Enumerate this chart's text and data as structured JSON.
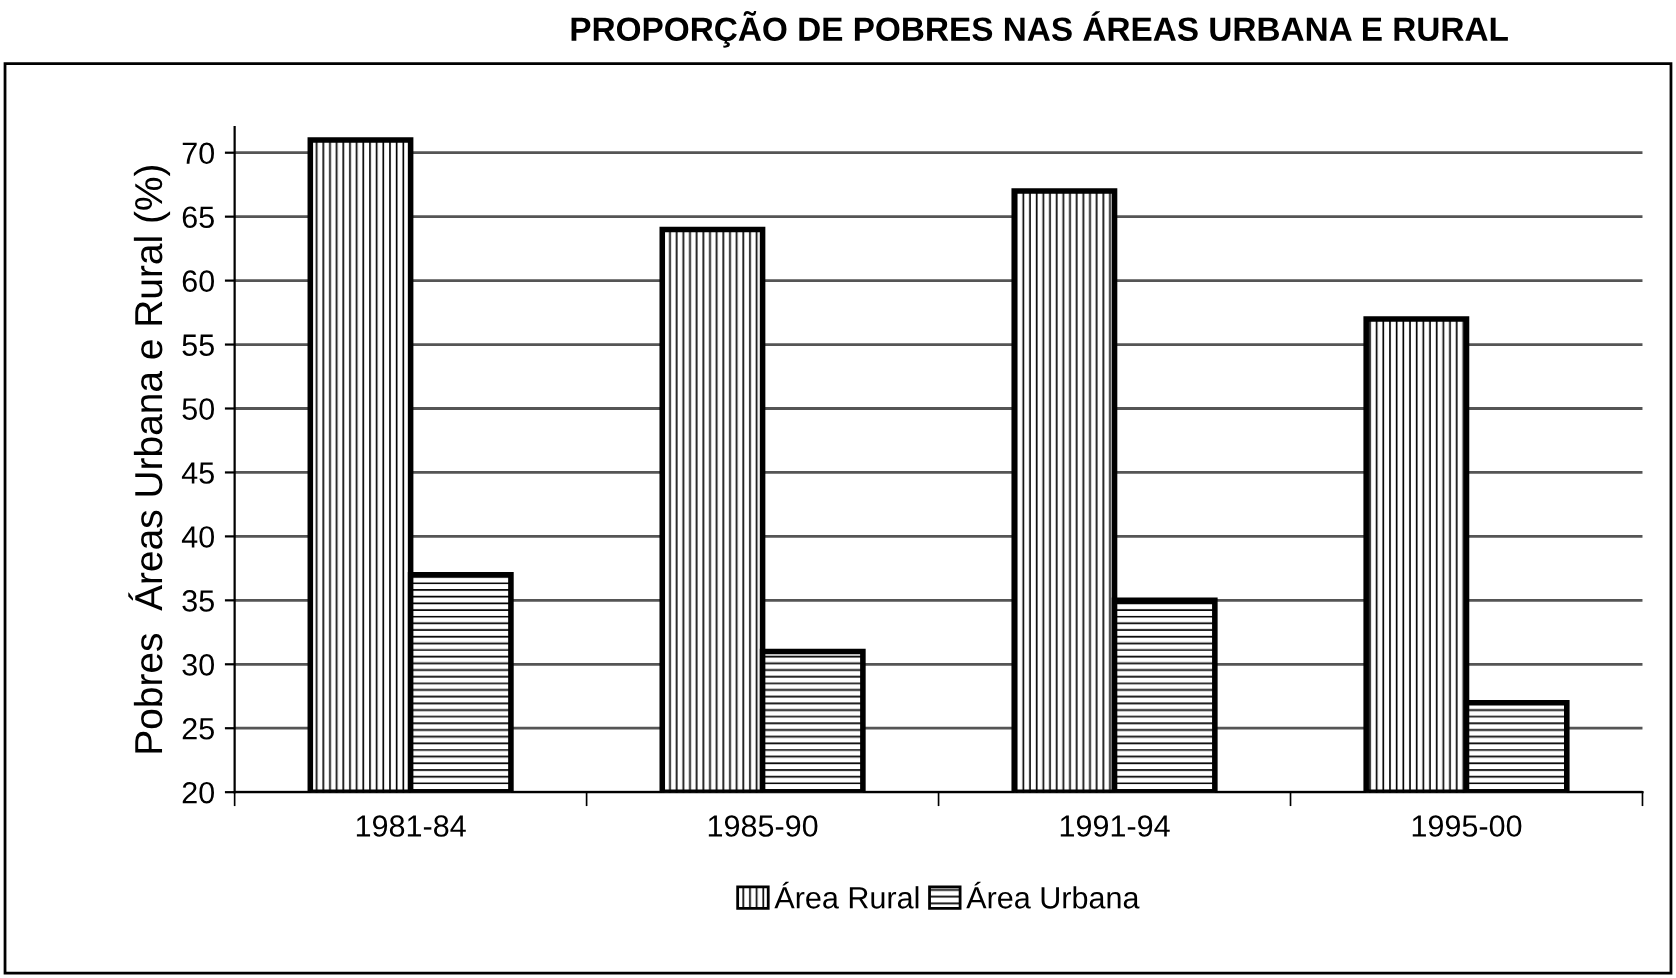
{
  "chart_data": {
    "type": "bar",
    "title": "PROPORÇÃO DE POBRES NAS ÁREAS URBANA E RURAL",
    "ylabel": "Pobres  Áreas Urbana e Rural (%)",
    "categories": [
      "1981-84",
      "1985-90",
      "1991-94",
      "1995-00"
    ],
    "series": [
      {
        "name": "Área Rural",
        "color": "#000000",
        "values": [
          71,
          64,
          67,
          57
        ]
      },
      {
        "name": "Área Urbana",
        "color": "#000000",
        "values": [
          37,
          31,
          35,
          27
        ]
      }
    ],
    "ylim": [
      20,
      72
    ],
    "yticks": [
      20,
      25,
      30,
      35,
      40,
      45,
      50,
      55,
      60,
      65,
      70
    ],
    "grid": "y",
    "legend": "bottom"
  }
}
